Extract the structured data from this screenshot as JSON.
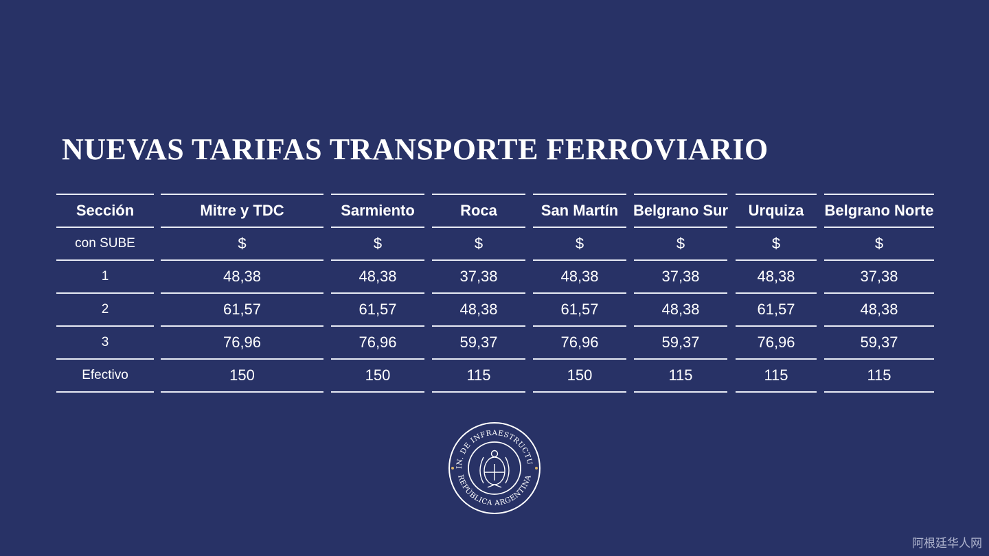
{
  "title": "NUEVAS TARIFAS TRANSPORTE FERROVIARIO",
  "table": {
    "header": [
      "Sección",
      "Mitre y TDC",
      "Sarmiento",
      "Roca",
      "San Martín",
      "Belgrano Sur",
      "Urquiza",
      "Belgrano Norte"
    ],
    "rows": [
      [
        "con SUBE",
        "$",
        "$",
        "$",
        "$",
        "$",
        "$",
        "$"
      ],
      [
        "1",
        "48,38",
        "48,38",
        "37,38",
        "48,38",
        "37,38",
        "48,38",
        "37,38"
      ],
      [
        "2",
        "61,57",
        "61,57",
        "48,38",
        "61,57",
        "48,38",
        "61,57",
        "48,38"
      ],
      [
        "3",
        "76,96",
        "76,96",
        "59,37",
        "76,96",
        "59,37",
        "76,96",
        "59,37"
      ],
      [
        "Efectivo",
        "150",
        "150",
        "115",
        "150",
        "115",
        "115",
        "115"
      ]
    ]
  },
  "seal": {
    "top_text": "MIN. DE INFRAESTRUCTURA",
    "bottom_text": "REPÚBLICA ARGENTINA"
  },
  "watermark": "阿根廷华人网",
  "colors": {
    "background": "#283266",
    "text": "#ffffff",
    "accent": "#d9b36a"
  }
}
